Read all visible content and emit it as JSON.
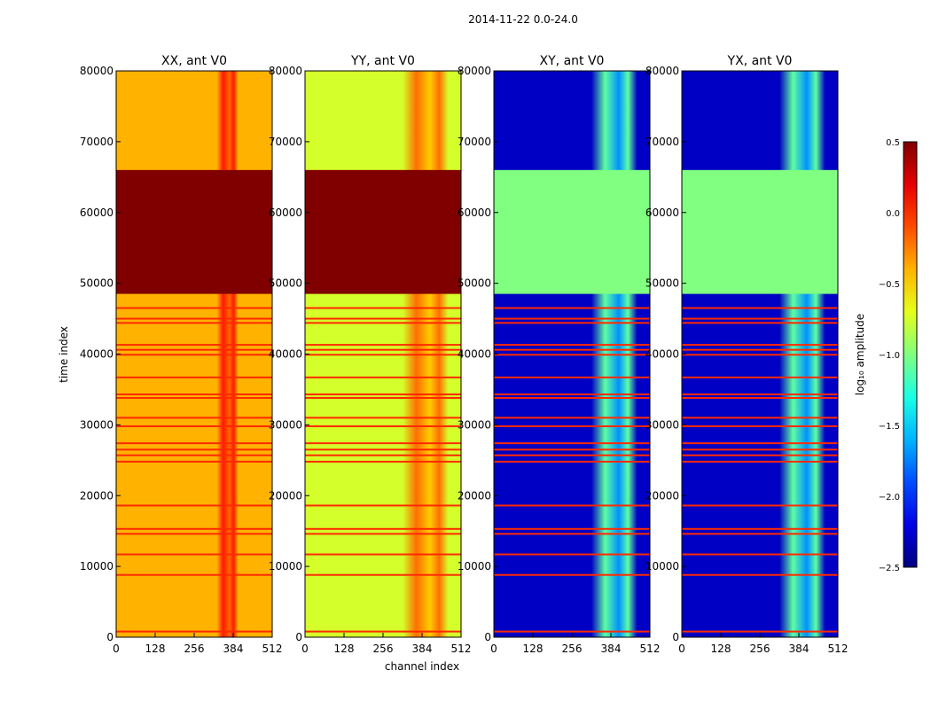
{
  "figure_title": "2014-11-22 0.0-24.0",
  "chart_data": {
    "type": "heatmap",
    "xlabel": "channel index",
    "ylabel": "time index",
    "xlim": [
      0,
      512
    ],
    "ylim": [
      0,
      80000
    ],
    "xticks": [
      "0",
      "128",
      "256",
      "384",
      "512"
    ],
    "yticks": [
      "0",
      "10000",
      "20000",
      "30000",
      "40000",
      "50000",
      "60000",
      "70000",
      "80000"
    ],
    "colorbar": {
      "label": "log₁₀ amplitude",
      "range": [
        -2.5,
        0.5
      ],
      "ticks": [
        "0.5",
        "0.0",
        "−0.5",
        "−1.0",
        "−1.5",
        "−2.0",
        "−2.5"
      ],
      "colormap": "jet"
    },
    "panels": [
      {
        "title": "XX, ant V0",
        "base_level": -0.4,
        "strong_rfi_level": 0.5,
        "strong_rfi_ranges": [
          [
            48500,
            66000
          ]
        ],
        "rfi_channels": [
          [
            330,
            400
          ]
        ],
        "rfi_level": 0.05
      },
      {
        "title": "YY, ant V0",
        "base_level": -0.75,
        "strong_rfi_level": 0.5,
        "strong_rfi_ranges": [
          [
            48500,
            66000
          ]
        ],
        "rfi_channels": [
          [
            320,
            470
          ]
        ],
        "rfi_level": -0.2
      },
      {
        "title": "XY, ant V0",
        "base_level": -2.3,
        "strong_rfi_level": -1.0,
        "strong_rfi_ranges": [
          [
            48500,
            66000
          ]
        ],
        "rfi_channels": [
          [
            320,
            470
          ]
        ],
        "rfi_level": -1.1
      },
      {
        "title": "YX, ant V0",
        "base_level": -2.3,
        "strong_rfi_level": -1.0,
        "strong_rfi_ranges": [
          [
            48500,
            66000
          ]
        ],
        "rfi_channels": [
          [
            320,
            470
          ]
        ],
        "rfi_level": -1.1
      }
    ],
    "flagged_times": [
      800,
      8800,
      11700,
      14600,
      15300,
      18600,
      24800,
      25700,
      26500,
      27400,
      29800,
      31000,
      33800,
      34300,
      36700,
      39900,
      40600,
      41300,
      44400,
      45000,
      46500
    ]
  }
}
